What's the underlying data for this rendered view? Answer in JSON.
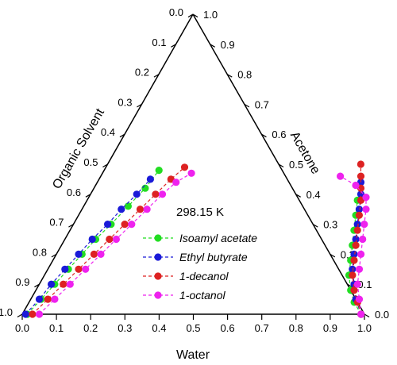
{
  "chart_data": {
    "type": "ternary",
    "annotation": "298.15 K",
    "axes": {
      "bottom": {
        "label": "Water",
        "ticks": [
          "0.0",
          "0.1",
          "0.2",
          "0.3",
          "0.4",
          "0.5",
          "0.6",
          "0.7",
          "0.8",
          "0.9",
          "1.0"
        ]
      },
      "right": {
        "label": "Acetone",
        "ticks": [
          "0.0",
          "0.1",
          "0.2",
          "0.3",
          "0.4",
          "0.5",
          "0.6",
          "0.7",
          "0.8",
          "0.9",
          "1.0"
        ]
      },
      "left": {
        "label": "Organic Solvent",
        "ticks": [
          "0.0",
          "0.1",
          "0.2",
          "0.3",
          "0.4",
          "0.5",
          "0.6",
          "0.7",
          "0.8",
          "0.9",
          "1.0"
        ]
      }
    },
    "legend_position": "center",
    "series": [
      {
        "name": "Isoamyl acetate",
        "color": "#22dd22",
        "organic_phase": [
          [
            0.015,
            0.0
          ],
          [
            0.03,
            0.05
          ],
          [
            0.045,
            0.1
          ],
          [
            0.06,
            0.15
          ],
          [
            0.075,
            0.2
          ],
          [
            0.09,
            0.25
          ],
          [
            0.11,
            0.3
          ],
          [
            0.13,
            0.36
          ],
          [
            0.15,
            0.42
          ],
          [
            0.16,
            0.48
          ]
        ],
        "aqueous_phase": [
          [
            0.99,
            0.0
          ],
          [
            0.95,
            0.04
          ],
          [
            0.92,
            0.08
          ],
          [
            0.89,
            0.13
          ],
          [
            0.87,
            0.18
          ],
          [
            0.85,
            0.23
          ],
          [
            0.83,
            0.28
          ],
          [
            0.81,
            0.33
          ],
          [
            0.79,
            0.38
          ],
          [
            0.77,
            0.43
          ]
        ]
      },
      {
        "name": "Ethyl butyrate",
        "color": "#1a1ad8",
        "organic_phase": [
          [
            0.01,
            0.0
          ],
          [
            0.025,
            0.05
          ],
          [
            0.035,
            0.1
          ],
          [
            0.05,
            0.15
          ],
          [
            0.065,
            0.2
          ],
          [
            0.08,
            0.25
          ],
          [
            0.1,
            0.3
          ],
          [
            0.115,
            0.35
          ],
          [
            0.135,
            0.4
          ],
          [
            0.15,
            0.45
          ]
        ],
        "aqueous_phase": [
          [
            0.99,
            0.0
          ],
          [
            0.95,
            0.05
          ],
          [
            0.92,
            0.1
          ],
          [
            0.89,
            0.15
          ],
          [
            0.87,
            0.2
          ],
          [
            0.85,
            0.25
          ],
          [
            0.83,
            0.3
          ],
          [
            0.81,
            0.35
          ],
          [
            0.79,
            0.4
          ],
          [
            0.77,
            0.44
          ]
        ]
      },
      {
        "name": "1-decanol",
        "color": "#dd2222",
        "organic_phase": [
          [
            0.03,
            0.0
          ],
          [
            0.05,
            0.05
          ],
          [
            0.07,
            0.1
          ],
          [
            0.09,
            0.15
          ],
          [
            0.11,
            0.2
          ],
          [
            0.13,
            0.25
          ],
          [
            0.15,
            0.3
          ],
          [
            0.17,
            0.35
          ],
          [
            0.19,
            0.4
          ],
          [
            0.21,
            0.45
          ],
          [
            0.23,
            0.49
          ]
        ],
        "aqueous_phase": [
          [
            0.99,
            0.0
          ],
          [
            0.96,
            0.04
          ],
          [
            0.93,
            0.08
          ],
          [
            0.9,
            0.13
          ],
          [
            0.88,
            0.18
          ],
          [
            0.86,
            0.23
          ],
          [
            0.84,
            0.28
          ],
          [
            0.82,
            0.33
          ],
          [
            0.8,
            0.38
          ],
          [
            0.78,
            0.42
          ],
          [
            0.76,
            0.46
          ],
          [
            0.74,
            0.5
          ]
        ]
      },
      {
        "name": "1-octanol",
        "color": "#ee22ee",
        "organic_phase": [
          [
            0.05,
            0.0
          ],
          [
            0.07,
            0.05
          ],
          [
            0.09,
            0.1
          ],
          [
            0.11,
            0.15
          ],
          [
            0.13,
            0.2
          ],
          [
            0.15,
            0.25
          ],
          [
            0.17,
            0.3
          ],
          [
            0.19,
            0.35
          ],
          [
            0.21,
            0.4
          ],
          [
            0.23,
            0.44
          ],
          [
            0.26,
            0.47
          ]
        ],
        "aqueous_phase": [
          [
            0.99,
            0.0
          ],
          [
            0.96,
            0.05
          ],
          [
            0.93,
            0.1
          ],
          [
            0.91,
            0.15
          ],
          [
            0.89,
            0.2
          ],
          [
            0.87,
            0.25
          ],
          [
            0.85,
            0.3
          ],
          [
            0.83,
            0.35
          ],
          [
            0.81,
            0.39
          ],
          [
            0.76,
            0.43
          ],
          [
            0.7,
            0.46
          ]
        ]
      }
    ]
  }
}
